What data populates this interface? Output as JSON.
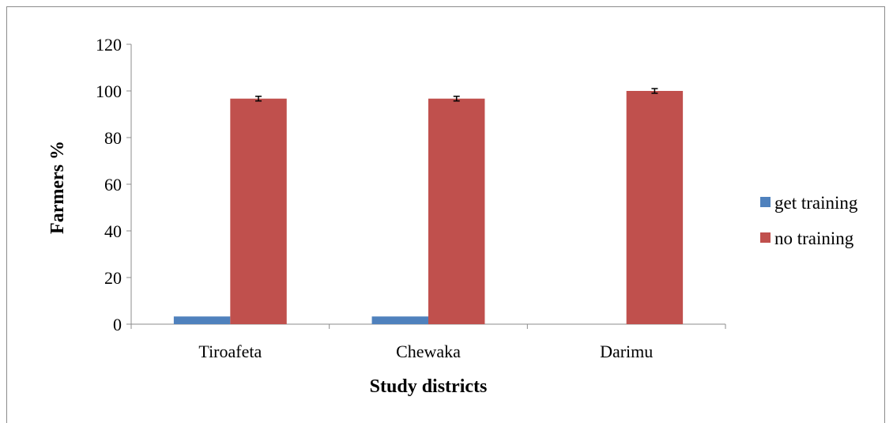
{
  "chart_data": {
    "type": "bar",
    "title": "",
    "xlabel": "Study districts",
    "ylabel": "Farmers %",
    "categories": [
      "Tiroafeta",
      "Chewaka",
      "Darimu"
    ],
    "series": [
      {
        "name": "get training",
        "values": [
          3.3,
          3.3,
          0
        ],
        "color": "#4f81bd"
      },
      {
        "name": "no training",
        "values": [
          96.7,
          96.7,
          100
        ],
        "color": "#c0504d",
        "error": [
          1,
          1,
          1
        ]
      }
    ],
    "ylim": [
      0,
      120
    ],
    "yticks": [
      0,
      20,
      40,
      60,
      80,
      100,
      120
    ],
    "grid": false,
    "legend_position": "right"
  }
}
